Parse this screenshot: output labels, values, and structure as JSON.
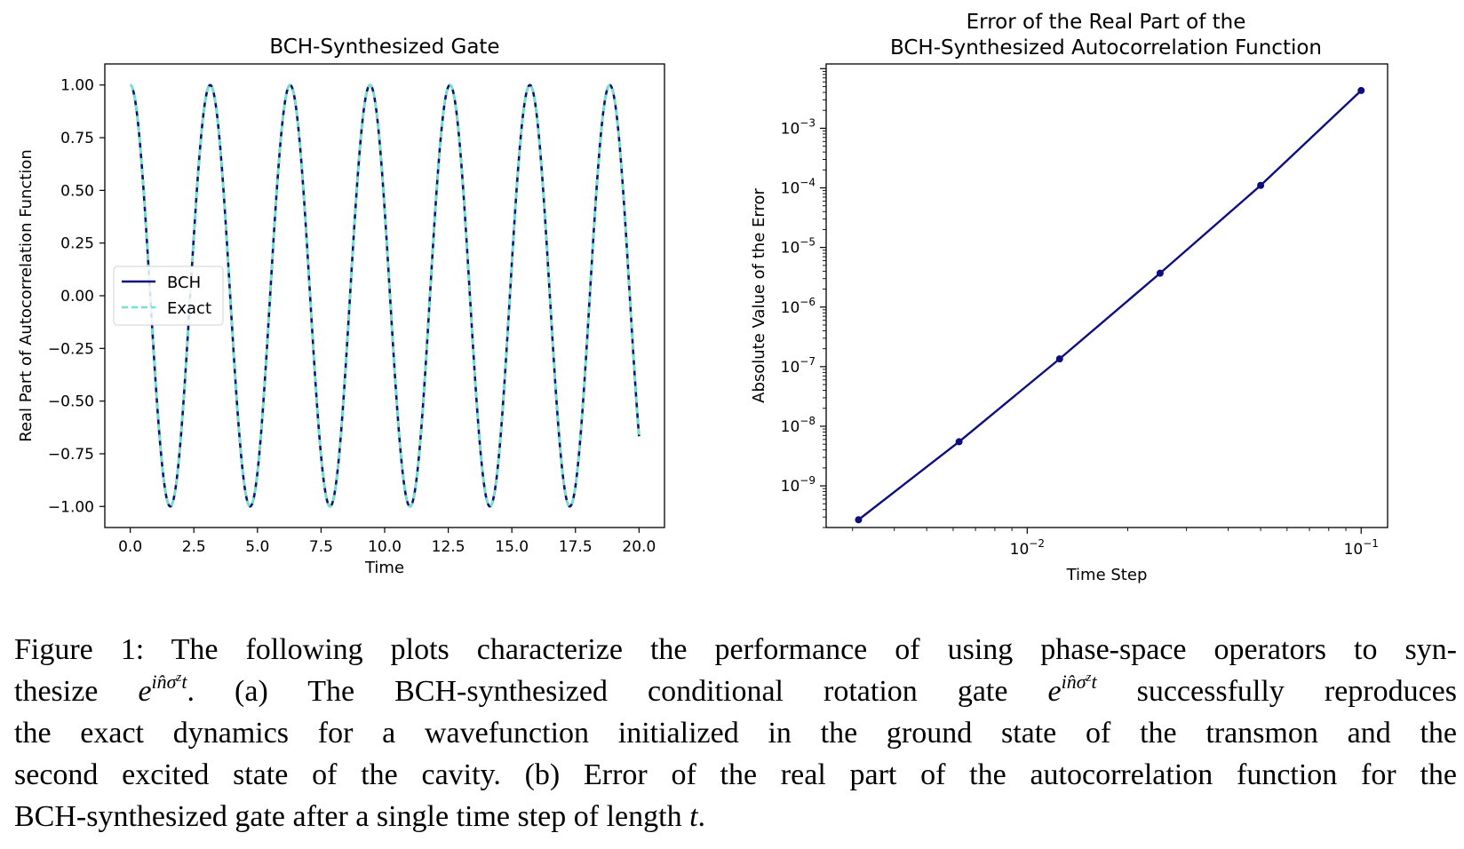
{
  "chart_data": [
    {
      "type": "line",
      "title": "BCH-Synthesized Gate",
      "xlabel": "Time",
      "ylabel": "Real Part of Autocorrelation Function",
      "xlim": [
        -1.0,
        21.0
      ],
      "ylim": [
        -1.1,
        1.1
      ],
      "xticks": [
        0,
        2.5,
        5,
        7.5,
        10,
        12.5,
        15,
        17.5,
        20
      ],
      "xtick_labels": [
        "0.0",
        "2.5",
        "5.0",
        "7.5",
        "10.0",
        "12.5",
        "15.0",
        "17.5",
        "20.0"
      ],
      "yticks": [
        1,
        0.75,
        0.5,
        0.25,
        0,
        -0.25,
        -0.5,
        -0.75,
        -1
      ],
      "ytick_labels": [
        "1.00",
        "0.75",
        "0.50",
        "0.25",
        "0.00",
        "−0.25",
        "−0.50",
        "−0.75",
        "−1.00"
      ],
      "legend_position": "center-left",
      "grid": false,
      "function": "cos(2t)",
      "x_range": [
        0,
        20
      ],
      "series": [
        {
          "name": "BCH",
          "color": "#0d0d80",
          "style": "solid"
        },
        {
          "name": "Exact",
          "color": "#6ee8c2",
          "style": "dashed"
        }
      ]
    },
    {
      "type": "line",
      "title": [
        "Error of the Real Part of the",
        "BCH-Synthesized Autocorrelation Function"
      ],
      "xlabel": "Time Step",
      "ylabel": "Absolute Value of the Error",
      "xscale": "log",
      "yscale": "log",
      "xlim": [
        0.0025,
        0.12
      ],
      "ylim": [
        2e-10,
        0.012
      ],
      "xticks": [
        0.01,
        0.1
      ],
      "xtick_labels": [
        {
          "base": "10",
          "exp": "−2"
        },
        {
          "base": "10",
          "exp": "−1"
        }
      ],
      "yticks": [
        0.001,
        0.0001,
        1e-05,
        1e-06,
        1e-07,
        1e-08,
        1e-09
      ],
      "ytick_labels": [
        {
          "base": "10",
          "exp": "−3"
        },
        {
          "base": "10",
          "exp": "−4"
        },
        {
          "base": "10",
          "exp": "−5"
        },
        {
          "base": "10",
          "exp": "−6"
        },
        {
          "base": "10",
          "exp": "−7"
        },
        {
          "base": "10",
          "exp": "−8"
        },
        {
          "base": "10",
          "exp": "−9"
        }
      ],
      "grid": false,
      "series": [
        {
          "color": "#0d0d80",
          "x": [
            0.003125,
            0.00625,
            0.0125,
            0.025,
            0.05,
            0.1
          ],
          "y": [
            2.7e-10,
            5.5e-09,
            1.35e-07,
            3.7e-06,
            0.00011,
            0.0043
          ]
        }
      ]
    }
  ],
  "caption": {
    "lines": [
      [
        "Figure 1:  The following plots characterize the performance of using phase-space operators to syn-"
      ],
      [
        "thesize ",
        {
          "math": "exp"
        },
        ".  (a) The BCH-synthesized conditional rotation gate ",
        {
          "math": "exp"
        },
        " successfully reproduces"
      ],
      [
        "the exact dynamics for a wavefunction initialized in the ground state of the transmon and the"
      ],
      [
        "second excited state of the cavity. (b) Error of the real part of the autocorrelation function for the"
      ],
      [
        "BCH-synthesized gate after a single time step of length ",
        {
          "math": "t"
        },
        "."
      ]
    ],
    "math_base": "e",
    "math_exponent": "in̂σ",
    "math_exponent_sup": "z",
    "math_exponent_tail": "t",
    "math_t": "t"
  }
}
